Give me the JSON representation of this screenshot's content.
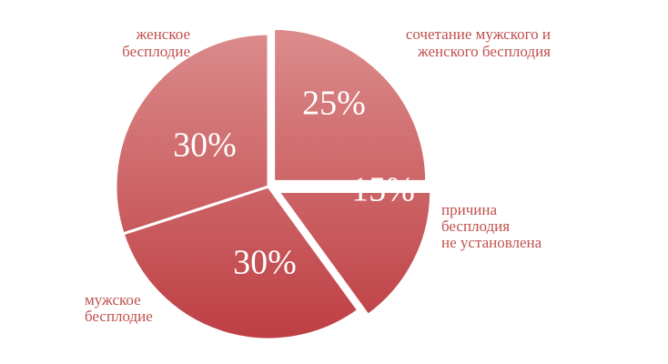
{
  "chart_data": {
    "type": "pie",
    "slices": [
      {
        "label_lines": [
          "сочетание мужского и",
          "женского бесплодия"
        ],
        "value": 25,
        "value_label": "25%"
      },
      {
        "label_lines": [
          "причина",
          "бесплодия",
          "не установлена"
        ],
        "value": 15,
        "value_label": "15%"
      },
      {
        "label_lines": [
          "мужское",
          "бесплодие"
        ],
        "value": 30,
        "value_label": "30%"
      },
      {
        "label_lines": [
          "женское",
          "бесплодие"
        ],
        "value": 30,
        "value_label": "30%"
      }
    ],
    "exploded": [
      "сочетание мужского и женского бесплодия",
      "причина бесплодия не установлена"
    ],
    "colors": {
      "light": "#dc8c8c",
      "dark": "#bd3d42",
      "label": "#c0504d"
    }
  }
}
